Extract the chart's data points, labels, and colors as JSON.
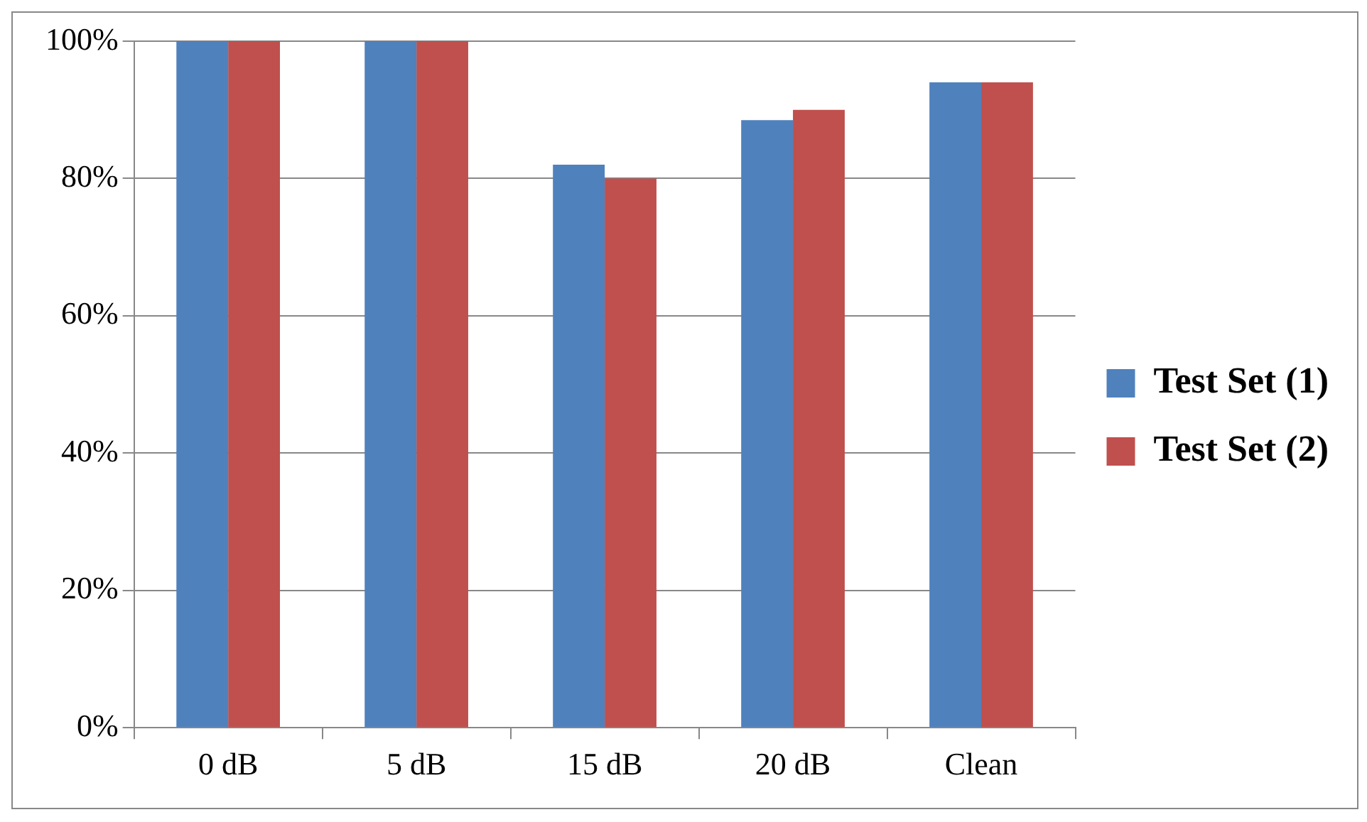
{
  "chart_data": {
    "type": "bar",
    "categories": [
      "0 dB",
      "5 dB",
      "15 dB",
      "20 dB",
      "Clean"
    ],
    "series": [
      {
        "name": "Test Set (1)",
        "color": "#4f81bd",
        "values": [
          100,
          100,
          82,
          88.5,
          94
        ]
      },
      {
        "name": "Test Set (2)",
        "color": "#c0504d",
        "values": [
          100,
          100,
          80,
          90,
          94
        ]
      }
    ],
    "ylim": [
      0,
      100
    ],
    "yticks": [
      {
        "value": 0,
        "label": "0%"
      },
      {
        "value": 20,
        "label": "20%"
      },
      {
        "value": 40,
        "label": "40%"
      },
      {
        "value": 60,
        "label": "60%"
      },
      {
        "value": 80,
        "label": "80%"
      },
      {
        "value": 100,
        "label": "100%"
      }
    ],
    "grid": "y",
    "legend": "right"
  }
}
